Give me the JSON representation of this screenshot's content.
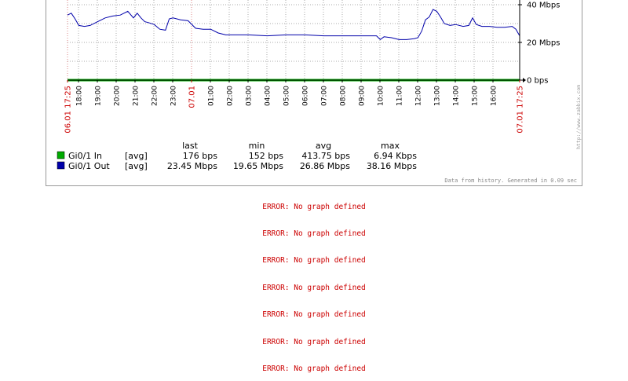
{
  "chart_data": {
    "type": "line",
    "y_ticks": [
      "0 bps",
      "20 Mbps",
      "40 Mbps"
    ],
    "y_tick_values": [
      0,
      20,
      40
    ],
    "y_unit": "Mbps",
    "ylim": [
      0,
      45
    ],
    "grid": true,
    "x_tick_labels": [
      "06.01 17:25",
      "18:00",
      "19:00",
      "20:00",
      "21:00",
      "22:00",
      "23:00",
      "07.01",
      "01:00",
      "02:00",
      "03:00",
      "04:00",
      "05:00",
      "06:00",
      "07:00",
      "08:00",
      "09:00",
      "10:00",
      "11:00",
      "12:00",
      "13:00",
      "14:00",
      "15:00",
      "16:00",
      "07.01 17:25"
    ],
    "x_tick_hours": [
      0,
      0.583,
      1.583,
      2.583,
      3.583,
      4.583,
      5.583,
      6.583,
      7.583,
      8.583,
      9.583,
      10.583,
      11.583,
      12.583,
      13.583,
      14.583,
      15.583,
      16.583,
      17.583,
      18.583,
      19.583,
      20.583,
      21.583,
      22.583,
      24
    ],
    "x_tick_highlight": [
      true,
      false,
      false,
      false,
      false,
      false,
      false,
      true,
      false,
      false,
      false,
      false,
      false,
      false,
      false,
      false,
      false,
      false,
      false,
      false,
      false,
      false,
      false,
      false,
      true
    ],
    "series": [
      {
        "name": "Gi0/1 In",
        "color": "#00aa00",
        "agg": "[avg]",
        "last": "176 bps",
        "min": "152 bps",
        "avg": "413.75 bps",
        "max": "6.94 Kbps",
        "x": [
          0,
          24
        ],
        "y": [
          0.0004,
          0.0004
        ]
      },
      {
        "name": "Gi0/1 Out",
        "color": "#0000aa",
        "agg": "[avg]",
        "last": "23.45 Mbps",
        "min": "19.65 Mbps",
        "avg": "26.86 Mbps",
        "max": "38.16 Mbps",
        "x": [
          0,
          0.2,
          0.4,
          0.6,
          0.9,
          1.2,
          1.6,
          2.0,
          2.4,
          2.8,
          3.2,
          3.5,
          3.7,
          3.9,
          4.1,
          4.3,
          4.6,
          4.9,
          5.2,
          5.4,
          5.6,
          6.0,
          6.4,
          6.8,
          7.2,
          7.6,
          8.0,
          8.4,
          8.8,
          9.6,
          10.6,
          11.6,
          12.6,
          13.6,
          14.6,
          15.6,
          16.4,
          16.6,
          16.8,
          17.2,
          17.6,
          18.0,
          18.4,
          18.6,
          18.8,
          19.0,
          19.2,
          19.4,
          19.6,
          19.8,
          20.0,
          20.3,
          20.6,
          21.0,
          21.3,
          21.5,
          21.7,
          22.0,
          22.4,
          22.8,
          23.2,
          23.6,
          23.8,
          24.0
        ],
        "y": [
          34.5,
          35.5,
          32.5,
          29.0,
          28.5,
          29.0,
          31.0,
          33.0,
          34.0,
          34.5,
          36.5,
          33.0,
          35.5,
          33.0,
          31.0,
          30.5,
          29.5,
          27.0,
          26.5,
          32.5,
          33.0,
          32.0,
          31.5,
          27.5,
          27.0,
          27.0,
          25.0,
          24.0,
          24.0,
          24.0,
          23.5,
          24.0,
          24.0,
          23.5,
          23.5,
          23.5,
          23.5,
          21.5,
          23.0,
          22.5,
          21.5,
          21.5,
          22.0,
          22.5,
          26.0,
          32.0,
          33.5,
          37.5,
          36.5,
          33.5,
          30.0,
          29.0,
          29.5,
          28.5,
          29.0,
          33.0,
          29.5,
          28.5,
          28.5,
          28.0,
          28.0,
          28.5,
          27.0,
          23.5
        ]
      }
    ],
    "legend_headers": [
      "last",
      "min",
      "avg",
      "max"
    ],
    "side_text": "http://www.zabbix.com",
    "footer_text": "Data from history. Generated in 0.09 sec"
  },
  "errors": [
    "ERROR: No graph defined",
    "ERROR: No graph defined",
    "ERROR: No graph defined",
    "ERROR: No graph defined",
    "ERROR: No graph defined",
    "ERROR: No graph defined",
    "ERROR: No graph defined"
  ]
}
